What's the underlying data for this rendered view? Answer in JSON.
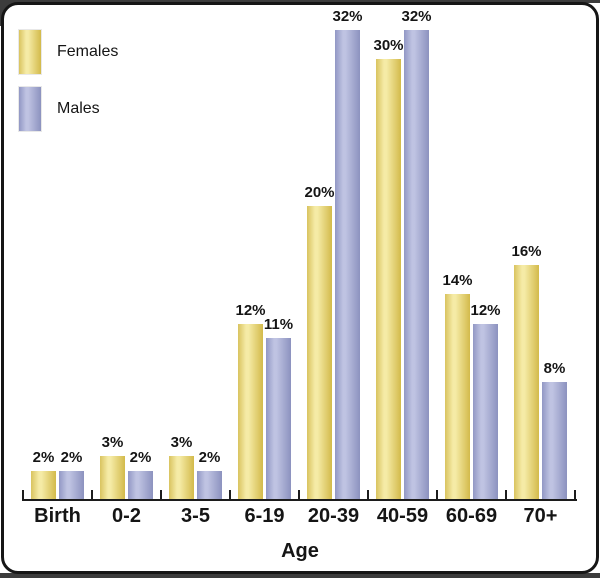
{
  "chart_data": {
    "type": "bar",
    "title": "",
    "categories": [
      "Birth",
      "0-2",
      "3-5",
      "6-19",
      "20-39",
      "40-59",
      "60-69",
      "70+"
    ],
    "series": [
      {
        "name": "Females",
        "values": [
          2,
          3,
          3,
          12,
          20,
          30,
          14,
          16
        ],
        "color": "#e6d877",
        "gradient": [
          "#d9c35f",
          "#f5eba6",
          "#d3ba4b"
        ]
      },
      {
        "name": "Males",
        "values": [
          2,
          2,
          2,
          11,
          32,
          32,
          12,
          8
        ],
        "color": "#a6abd3",
        "gradient": [
          "#9197c4",
          "#bfc3e2",
          "#8c92bf"
        ]
      }
    ],
    "value_suffix": "%",
    "xlabel": "Age",
    "ylabel": "",
    "ylim": [
      0,
      34
    ],
    "grid": false,
    "legend_position": "top-left"
  },
  "frame": {
    "background": "#ffffff",
    "border_color": "#161616",
    "outer_edge_color": "#3c3c3c"
  }
}
